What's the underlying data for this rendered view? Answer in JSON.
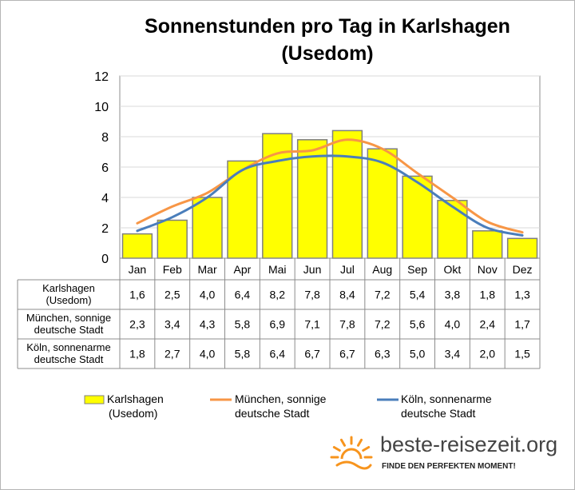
{
  "chart_data": {
    "type": "bar",
    "title": "Sonnenstunden pro Tag in Karlshagen (Usedom)",
    "categories": [
      "Jan",
      "Feb",
      "Mar",
      "Apr",
      "Mai",
      "Jun",
      "Jul",
      "Aug",
      "Sep",
      "Okt",
      "Nov",
      "Dez"
    ],
    "ylim": [
      0,
      12
    ],
    "yticks": [
      "0",
      "2",
      "4",
      "6",
      "8",
      "10",
      "12"
    ],
    "grid": true,
    "legend_position": "bottom",
    "series": [
      {
        "name": "Karlshagen (Usedom)",
        "table_label": [
          "Karlshagen",
          "(Usedom)"
        ],
        "type": "bar",
        "color": "#ffff00",
        "values": [
          1.6,
          2.5,
          4.0,
          6.4,
          8.2,
          7.8,
          8.4,
          7.2,
          5.4,
          3.8,
          1.8,
          1.3
        ],
        "labels": [
          "1,6",
          "2,5",
          "4,0",
          "6,4",
          "8,2",
          "7,8",
          "8,4",
          "7,2",
          "5,4",
          "3,8",
          "1,8",
          "1,3"
        ]
      },
      {
        "name": "München, sonnige deutsche Stadt",
        "table_label": [
          "München, sonnige",
          "deutsche Stadt"
        ],
        "type": "line",
        "color": "#f79646",
        "values": [
          2.3,
          3.4,
          4.3,
          5.8,
          6.9,
          7.1,
          7.8,
          7.2,
          5.6,
          4.0,
          2.4,
          1.7
        ],
        "labels": [
          "2,3",
          "3,4",
          "4,3",
          "5,8",
          "6,9",
          "7,1",
          "7,8",
          "7,2",
          "5,6",
          "4,0",
          "2,4",
          "1,7"
        ]
      },
      {
        "name": "Köln, sonnenarme deutsche Stadt",
        "table_label": [
          "Köln, sonnenarme",
          "deutsche Stadt"
        ],
        "type": "line",
        "color": "#4a7ebb",
        "values": [
          1.8,
          2.7,
          4.0,
          5.8,
          6.4,
          6.7,
          6.7,
          6.3,
          5.0,
          3.4,
          2.0,
          1.5
        ],
        "labels": [
          "1,8",
          "2,7",
          "4,0",
          "5,8",
          "6,4",
          "6,7",
          "6,7",
          "6,3",
          "5,0",
          "3,4",
          "2,0",
          "1,5"
        ]
      }
    ]
  },
  "legend": {
    "karlshagen": [
      "Karlshagen",
      "(Usedom)"
    ],
    "muenchen": [
      "München, sonnige",
      "deutsche Stadt"
    ],
    "koeln": [
      "Köln, sonnenarme",
      "deutsche Stadt"
    ]
  },
  "brand": {
    "name": "beste-reisezeit.org",
    "tagline": "FINDE DEN PERFEKTEN MOMENT!",
    "accent": "#f7941d"
  }
}
